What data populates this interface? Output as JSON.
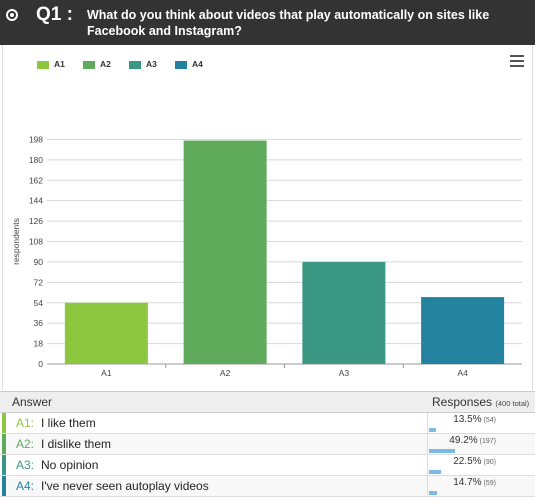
{
  "header": {
    "question_number": "Q1 :",
    "question_text": "What do you think about videos that play automatically on sites like Facebook and Instagram?"
  },
  "chart_data": {
    "type": "bar",
    "categories": [
      "A1",
      "A2",
      "A3",
      "A4"
    ],
    "values": [
      54,
      197,
      90,
      59
    ],
    "colors": [
      "#8dc63f",
      "#5faa5b",
      "#3a9882",
      "#23839e"
    ],
    "ylabel": "respondents",
    "xlabel": "",
    "ylim": [
      0,
      216
    ],
    "yticks": [
      0,
      18,
      36,
      54,
      72,
      90,
      108,
      126,
      144,
      162,
      180,
      198
    ],
    "legend": [
      "A1",
      "A2",
      "A3",
      "A4"
    ],
    "legend_position": "top-left",
    "grid": true
  },
  "table": {
    "answer_header": "Answer",
    "responses_header": "Responses",
    "total_label": "(400 total)",
    "rows": [
      {
        "code": "A1:",
        "label": "I like them",
        "percent": "13.5%",
        "count": "(54)",
        "fraction": 0.135,
        "color": "#8dc63f"
      },
      {
        "code": "A2:",
        "label": "I dislike them",
        "percent": "49.2%",
        "count": "(197)",
        "fraction": 0.492,
        "color": "#5faa5b"
      },
      {
        "code": "A3:",
        "label": "No opinion",
        "percent": "22.5%",
        "count": "(90)",
        "fraction": 0.225,
        "color": "#3a9882"
      },
      {
        "code": "A4:",
        "label": "I've never seen autoplay videos",
        "percent": "14.7%",
        "count": "(59)",
        "fraction": 0.147,
        "color": "#23839e"
      }
    ]
  }
}
